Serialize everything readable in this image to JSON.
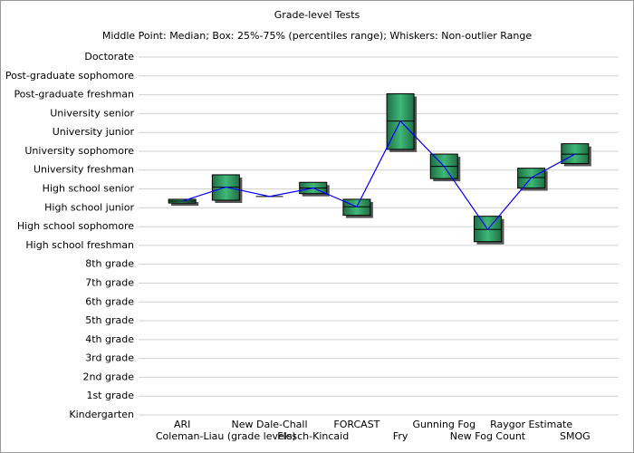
{
  "chart_data": {
    "type": "box",
    "title": "Grade-level Tests",
    "subtitle": "Middle Point: Median; Box: 25%-75% (percentiles range); Whiskers: Non-outlier Range",
    "categories": [
      "ARI",
      "Coleman-Liau (grade levels)",
      "New Dale-Chall",
      "Flesch-Kincaid",
      "FORCAST",
      "Fry",
      "Gunning Fog",
      "New Fog Count",
      "Raygor Estimate",
      "SMOG"
    ],
    "median": [
      11.35,
      12.1,
      11.6,
      12.05,
      11.05,
      15.6,
      13.2,
      9.85,
      12.6,
      13.85
    ],
    "q1": [
      11.25,
      11.4,
      11.6,
      11.75,
      10.6,
      14.1,
      12.55,
      9.2,
      12.05,
      13.35
    ],
    "q3": [
      11.45,
      12.75,
      11.6,
      12.35,
      11.45,
      17.05,
      13.85,
      10.55,
      13.1,
      14.4
    ],
    "box_color": "#2e9a62",
    "line_color": "#0000ff",
    "ylim": [
      0,
      19
    ],
    "yticks": [
      {
        "value": 0,
        "label": "Kindergarten"
      },
      {
        "value": 1,
        "label": "1st grade"
      },
      {
        "value": 2,
        "label": "2nd grade"
      },
      {
        "value": 3,
        "label": "3rd grade"
      },
      {
        "value": 4,
        "label": "4th grade"
      },
      {
        "value": 5,
        "label": "5th grade"
      },
      {
        "value": 6,
        "label": "6th grade"
      },
      {
        "value": 7,
        "label": "7th grade"
      },
      {
        "value": 8,
        "label": "8th grade"
      },
      {
        "value": 9,
        "label": "High school freshman"
      },
      {
        "value": 10,
        "label": "High school sophomore"
      },
      {
        "value": 11,
        "label": "High school junior"
      },
      {
        "value": 12,
        "label": "High school senior"
      },
      {
        "value": 13,
        "label": "University freshman"
      },
      {
        "value": 14,
        "label": "University sophomore"
      },
      {
        "value": 15,
        "label": "University junior"
      },
      {
        "value": 16,
        "label": "University senior"
      },
      {
        "value": 17,
        "label": "Post-graduate freshman"
      },
      {
        "value": 18,
        "label": "Post-graduate sophomore"
      },
      {
        "value": 19,
        "label": "Doctorate"
      }
    ],
    "grid": true
  }
}
